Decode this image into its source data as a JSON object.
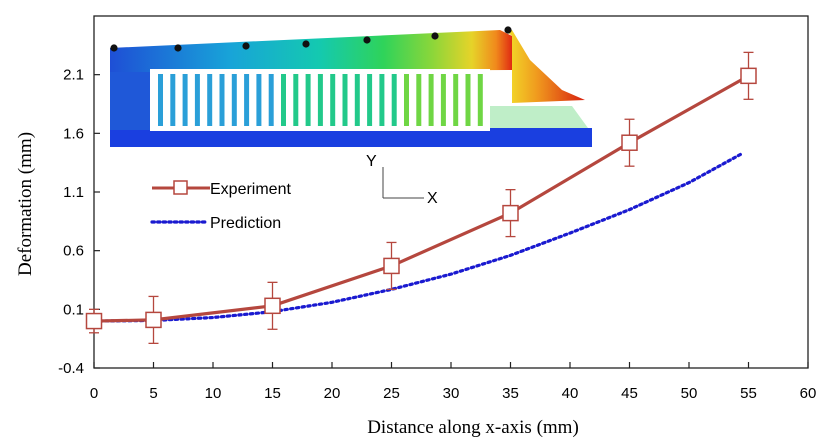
{
  "chart_data": {
    "type": "line",
    "title": "",
    "xlabel": "Distance along x-axis (mm)",
    "ylabel": "Deformation (mm)",
    "xlim": [
      0,
      60
    ],
    "ylim": [
      -0.4,
      2.6
    ],
    "xticks": [
      0,
      5,
      10,
      15,
      20,
      25,
      30,
      35,
      40,
      45,
      50,
      55,
      60
    ],
    "yticks": [
      -0.4,
      0.1,
      0.6,
      1.1,
      1.6,
      2.1
    ],
    "ytick_labels": [
      "-0.4",
      "0.1",
      "0.6",
      "1.1",
      "1.6",
      "2.1"
    ],
    "grid": false,
    "legend_position": "middle-left",
    "series": [
      {
        "name": "Experiment",
        "style": "solid line with open square markers and error bars",
        "color": "#b5473e",
        "x": [
          0,
          5,
          15,
          25,
          35,
          45,
          55
        ],
        "y": [
          0.0,
          0.01,
          0.13,
          0.47,
          0.92,
          1.52,
          2.09
        ],
        "error": [
          0.1,
          0.2,
          0.2,
          0.2,
          0.2,
          0.2,
          0.2
        ]
      },
      {
        "name": "Prediction",
        "style": "dotted line",
        "color": "#1a1ad0",
        "x": [
          0,
          5,
          10,
          15,
          20,
          25,
          30,
          35,
          40,
          45,
          50,
          54.5
        ],
        "y": [
          0.0,
          0.005,
          0.03,
          0.08,
          0.16,
          0.27,
          0.4,
          0.56,
          0.75,
          0.95,
          1.18,
          1.43
        ]
      }
    ],
    "inset": {
      "axis_labels": [
        "Y",
        "X"
      ]
    }
  }
}
